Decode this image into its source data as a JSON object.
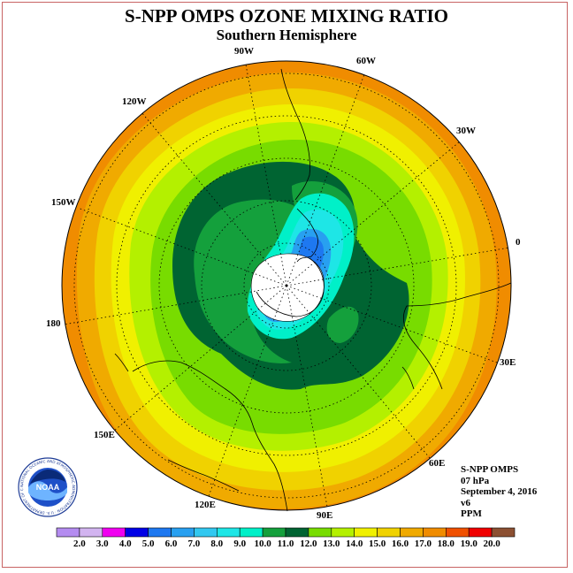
{
  "title": "S-NPP OMPS OZONE MIXING RATIO",
  "subtitle": "Southern Hemisphere",
  "longitude_labels": [
    {
      "text": "90W"
    },
    {
      "text": "60W"
    },
    {
      "text": "120W"
    },
    {
      "text": "30W"
    },
    {
      "text": "150W"
    },
    {
      "text": "0"
    },
    {
      "text": "180"
    },
    {
      "text": "30E"
    },
    {
      "text": "150E"
    },
    {
      "text": "60E"
    },
    {
      "text": "120E"
    },
    {
      "text": "90E"
    }
  ],
  "info": {
    "product": "S-NPP OMPS",
    "level": "07 hPa",
    "date": "September 4, 2016",
    "version": "v6",
    "units": "PPM"
  },
  "logo": {
    "text": "NOAA",
    "ring_text": "NATIONAL OCEANIC AND ATMOSPHERIC ADMINISTRATION · U.S. DEPARTMENT OF COMMERCE"
  },
  "colorbar": {
    "labels": [
      "2.0",
      "3.0",
      "4.0",
      "5.0",
      "6.0",
      "7.0",
      "8.0",
      "9.0",
      "10.0",
      "11.0",
      "12.0",
      "13.0",
      "14.0",
      "15.0",
      "16.0",
      "17.0",
      "18.0",
      "19.0",
      "20.0"
    ],
    "colors": [
      "#b48cf0",
      "#d2b4f0",
      "#f000f0",
      "#0000e6",
      "#1e78f0",
      "#28a0f0",
      "#32c8f0",
      "#1ee6e6",
      "#00f0c8",
      "#14a03c",
      "#006432",
      "#78dc00",
      "#b4f000",
      "#f0f000",
      "#f0d200",
      "#f0aa00",
      "#f08c00",
      "#f05000",
      "#f00000",
      "#8c5032"
    ]
  },
  "map": {
    "projection": "south polar stereographic",
    "field_levels": [
      {
        "value": 18.0,
        "color": "#f08c00"
      },
      {
        "value": 17.0,
        "color": "#f0aa00"
      },
      {
        "value": 16.0,
        "color": "#f0d200"
      },
      {
        "value": 15.0,
        "color": "#f0f000"
      },
      {
        "value": 14.0,
        "color": "#b4f000"
      },
      {
        "value": 13.0,
        "color": "#78dc00"
      },
      {
        "value": 12.0,
        "color": "#006432"
      },
      {
        "value": 11.0,
        "color": "#14a03c"
      },
      {
        "value": 10.0,
        "color": "#00f0c8"
      },
      {
        "value": 9.0,
        "color": "#1ee6e6"
      },
      {
        "value": 7.0,
        "color": "#28a0f0"
      },
      {
        "value": 6.0,
        "color": "#1e78f0"
      }
    ],
    "no_data_color": "#ffffff"
  }
}
